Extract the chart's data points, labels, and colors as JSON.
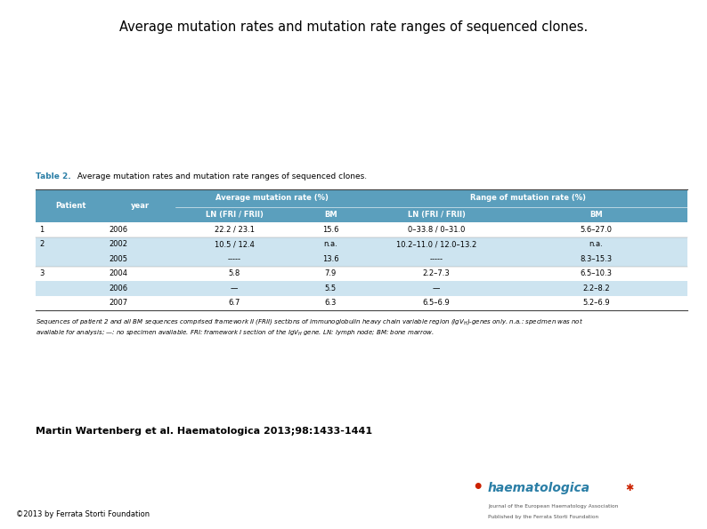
{
  "title": "Average mutation rates and mutation rate ranges of sequenced clones.",
  "table_label_bold": "Table 2.",
  "table_label_rest": " Average mutation rates and mutation rate ranges of sequenced clones.",
  "header_bg": "#5b9fbd",
  "row_bg_light": "#cde4f0",
  "row_bg_white": "#ffffff",
  "header_text_color": "#ffffff",
  "body_text_color": "#000000",
  "rows": [
    [
      "1",
      "2006",
      "22.2 / 23.1",
      "15.6",
      "0–33.8 / 0–31.0",
      "5.6–27.0"
    ],
    [
      "2",
      "2002",
      "10.5 / 12.4",
      "n.a.",
      "10.2–11.0 / 12.0–13.2",
      "n.a."
    ],
    [
      "",
      "2005",
      "-----",
      "13.6",
      "-----",
      "8.3–15.3"
    ],
    [
      "3",
      "2004",
      "5.8",
      "7.9",
      "2.2–7.3",
      "6.5–10.3"
    ],
    [
      "",
      "2006",
      "—",
      "5.5",
      "—",
      "2.2–8.2"
    ],
    [
      "",
      "2007",
      "6.7",
      "6.3",
      "6.5–6.9",
      "5.2–6.9"
    ]
  ],
  "row_shading": [
    "white",
    "light",
    "light",
    "white",
    "light",
    "white"
  ],
  "citation": "Martin Wartenberg et al. Haematologica 2013;98:1433-1441",
  "copyright": "©2013 by Ferrata Storti Foundation",
  "fig_width": 7.94,
  "fig_height": 5.95,
  "table_color_label": "#2a7ea6",
  "logo_text_color": "#cc0000",
  "logo_sub_color": "#555555"
}
